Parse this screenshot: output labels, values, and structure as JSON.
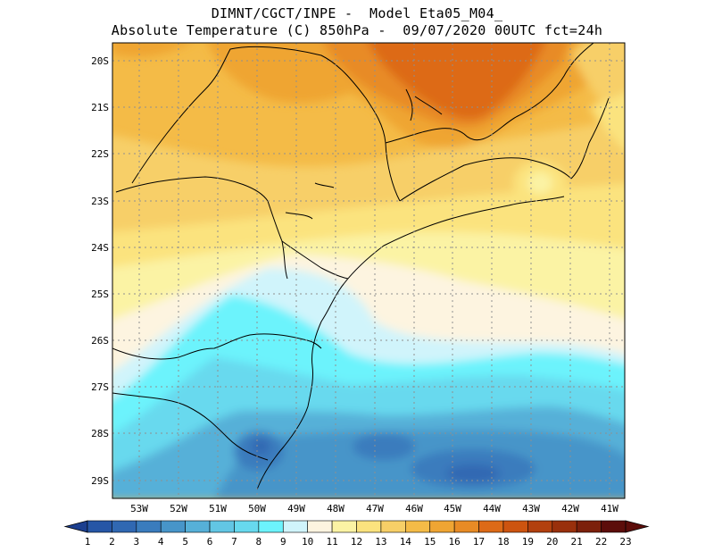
{
  "header": {
    "line1": "DIMNT/CGCT/INPE -  Model Eta05_M04_",
    "line2": "Absolute Temperature (C) 850hPa -  09/07/2020 00UTC fct=24h"
  },
  "axes": {
    "lat_labels": [
      "20S",
      "21S",
      "22S",
      "23S",
      "24S",
      "25S",
      "26S",
      "27S",
      "28S",
      "29S"
    ],
    "lon_labels": [
      "53W",
      "52W",
      "51W",
      "50W",
      "49W",
      "48W",
      "47W",
      "46W",
      "45W",
      "44W",
      "43W",
      "42W",
      "41W"
    ]
  },
  "colorbar": {
    "labels": [
      "1",
      "2",
      "3",
      "4",
      "5",
      "6",
      "7",
      "8",
      "9",
      "10",
      "11",
      "12",
      "13",
      "14",
      "15",
      "16",
      "17",
      "18",
      "19",
      "20",
      "21",
      "22",
      "23"
    ],
    "colors": [
      "#1c3f8f",
      "#2656a6",
      "#3068b2",
      "#3a7cbd",
      "#4795c9",
      "#56b0d8",
      "#62c6e4",
      "#67d9ee",
      "#6cf3fc",
      "#d0f4fb",
      "#fdf4e0",
      "#fbf3a4",
      "#fbe37e",
      "#f7cf67",
      "#f4bb47",
      "#efa533",
      "#e88b25",
      "#dd6a17",
      "#cd5410",
      "#b2400e",
      "#99300c",
      "#7c200b",
      "#5c0d0a"
    ]
  }
}
